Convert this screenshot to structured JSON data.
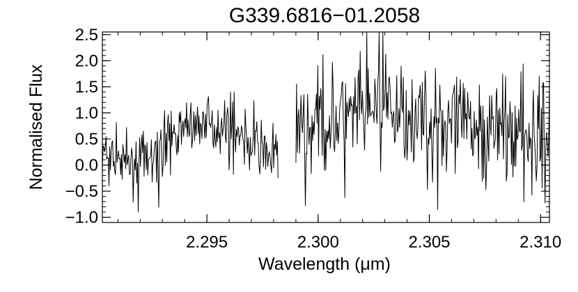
{
  "chart_data": {
    "type": "line",
    "title": "G339.6816−01.2058",
    "xlabel": "Wavelength (μm)",
    "ylabel": "Normalised Flux",
    "xlim": [
      2.2903,
      2.3104
    ],
    "ylim": [
      -1.1,
      2.55
    ],
    "x_ticks": [
      2.295,
      2.3,
      2.305,
      2.31
    ],
    "x_tick_labels": [
      "2.295",
      "2.300",
      "2.305",
      "2.310"
    ],
    "y_ticks": [
      -1.0,
      -0.5,
      0.0,
      0.5,
      1.0,
      1.5,
      2.0,
      2.5
    ],
    "y_tick_labels": [
      "−1.0",
      "−0.5",
      "0.0",
      "0.5",
      "1.0",
      "1.5",
      "2.0",
      "2.5"
    ],
    "grid": false,
    "line_color": "#000000",
    "segments": [
      {
        "x_start": 2.2903,
        "x_end": 2.2982,
        "envelope": [
          [
            2.2903,
            0.2
          ],
          [
            2.291,
            0.1
          ],
          [
            2.292,
            0.05
          ],
          [
            2.293,
            0.2
          ],
          [
            2.2935,
            0.6
          ],
          [
            2.294,
            0.75
          ],
          [
            2.2945,
            0.8
          ],
          [
            2.295,
            0.8
          ],
          [
            2.2955,
            0.7
          ],
          [
            2.296,
            0.7
          ],
          [
            2.2965,
            0.6
          ],
          [
            2.297,
            0.4
          ],
          [
            2.2975,
            0.3
          ],
          [
            2.2982,
            0.2
          ]
        ],
        "noise": 0.26,
        "ymin": -0.9,
        "ymax": 1.4
      },
      {
        "x_start": 2.299,
        "x_end": 2.3104,
        "envelope": [
          [
            2.299,
            0.6
          ],
          [
            2.2995,
            0.7
          ],
          [
            2.3,
            0.75
          ],
          [
            2.3005,
            0.8
          ],
          [
            2.301,
            0.85
          ],
          [
            2.3015,
            0.95
          ],
          [
            2.302,
            0.95
          ],
          [
            2.3025,
            1.0
          ],
          [
            2.303,
            1.05
          ],
          [
            2.3035,
            1.05
          ],
          [
            2.304,
            1.0
          ],
          [
            2.3045,
            0.9
          ],
          [
            2.305,
            0.85
          ],
          [
            2.3055,
            0.85
          ],
          [
            2.306,
            0.8
          ],
          [
            2.3065,
            0.75
          ],
          [
            2.307,
            0.7
          ],
          [
            2.3075,
            0.7
          ],
          [
            2.308,
            0.65
          ],
          [
            2.3085,
            0.6
          ],
          [
            2.309,
            0.6
          ],
          [
            2.3095,
            0.55
          ],
          [
            2.31,
            0.5
          ],
          [
            2.3104,
            0.5
          ]
        ],
        "noise": 0.46,
        "ymin": -0.85,
        "ymax": 2.55
      }
    ]
  }
}
